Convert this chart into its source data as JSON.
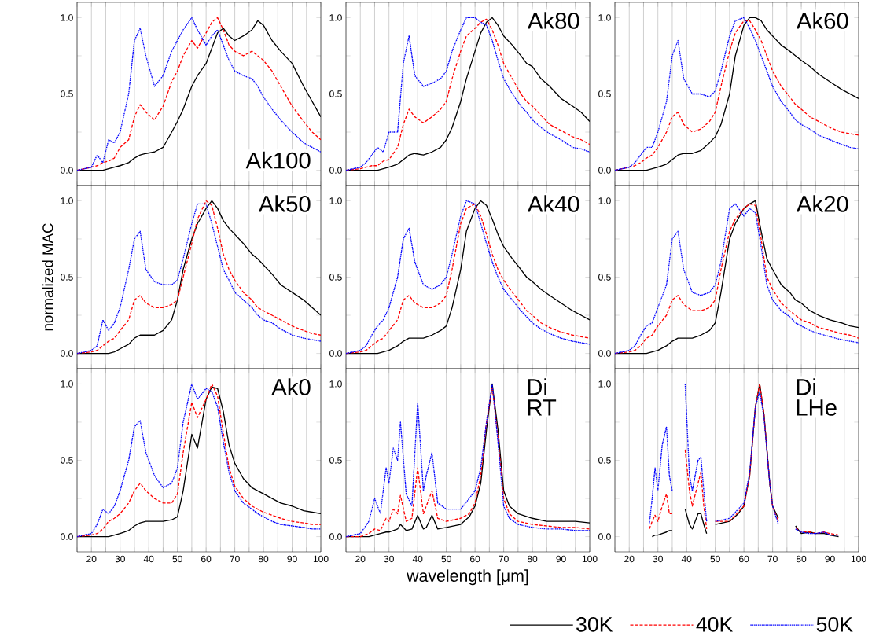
{
  "chart_data": [
    {
      "type": "line",
      "title": "Ak100",
      "x": [
        15,
        20,
        22,
        24,
        26,
        28,
        30,
        33,
        35,
        37,
        39,
        42,
        45,
        48,
        50,
        52,
        55,
        57,
        60,
        62,
        64,
        66,
        68,
        70,
        73,
        76,
        78,
        80,
        83,
        86,
        90,
        94,
        97,
        100
      ],
      "xlim": [
        15,
        100
      ],
      "ylim": [
        -0.1,
        1.1
      ],
      "xticks": [
        {
          "value": 15,
          "label": null
        },
        20,
        {
          "value": 25,
          "label": null
        },
        30,
        {
          "value": 35,
          "label": null
        },
        40,
        {
          "value": 45,
          "label": null
        },
        50,
        {
          "value": 55,
          "label": null
        },
        60,
        {
          "value": 65,
          "label": null
        },
        70,
        {
          "value": 75,
          "label": null
        },
        80,
        {
          "value": 85,
          "label": null
        },
        90,
        {
          "value": 95,
          "label": null
        },
        100
      ],
      "yticks": [
        {
          "value": 0,
          "label": "0.0"
        },
        {
          "value": 0.25,
          "label": null
        },
        {
          "value": 0.5,
          "label": "0.5"
        },
        {
          "value": 0.75,
          "label": null
        },
        {
          "value": 1,
          "label": "1.0"
        }
      ],
      "grid": "x",
      "tick_labels": "y",
      "series": [
        {
          "color": "#000000",
          "line_style": "solid",
          "values": [
            0,
            0,
            0,
            0,
            0.01,
            0.02,
            0.03,
            0.05,
            0.08,
            0.1,
            0.11,
            0.12,
            0.15,
            0.25,
            0.32,
            0.4,
            0.55,
            0.62,
            0.7,
            0.8,
            0.9,
            0.93,
            0.88,
            0.85,
            0.88,
            0.92,
            0.98,
            0.95,
            0.85,
            0.78,
            0.7,
            0.55,
            0.45,
            0.35
          ]
        },
        {
          "color": "#ff0000",
          "line_style": "dashed",
          "values": [
            0,
            0.02,
            0.03,
            0.05,
            0.06,
            0.08,
            0.15,
            0.2,
            0.35,
            0.43,
            0.38,
            0.33,
            0.42,
            0.58,
            0.65,
            0.75,
            0.85,
            0.8,
            0.9,
            0.97,
            1.0,
            0.92,
            0.82,
            0.78,
            0.75,
            0.78,
            0.75,
            0.72,
            0.65,
            0.55,
            0.42,
            0.32,
            0.25,
            0.2
          ]
        },
        {
          "color": "#0000ff",
          "line_style": "dotted",
          "values": [
            0,
            0.02,
            0.1,
            0.05,
            0.2,
            0.18,
            0.25,
            0.5,
            0.85,
            0.93,
            0.75,
            0.55,
            0.62,
            0.78,
            0.85,
            0.92,
            1.0,
            0.92,
            0.82,
            0.88,
            0.92,
            0.82,
            0.72,
            0.65,
            0.62,
            0.6,
            0.55,
            0.48,
            0.4,
            0.33,
            0.25,
            0.18,
            0.15,
            0.12
          ]
        }
      ]
    },
    {
      "type": "line",
      "title": "Ak80",
      "x": [
        15,
        20,
        22,
        24,
        26,
        28,
        30,
        33,
        35,
        37,
        39,
        42,
        45,
        48,
        50,
        52,
        55,
        57,
        60,
        62,
        64,
        66,
        68,
        70,
        73,
        76,
        78,
        80,
        83,
        86,
        90,
        94,
        97,
        100
      ],
      "xlim": [
        15,
        100
      ],
      "ylim": [
        -0.1,
        1.1
      ],
      "xticks": [
        {
          "value": 15,
          "label": null
        },
        20,
        {
          "value": 25,
          "label": null
        },
        30,
        {
          "value": 35,
          "label": null
        },
        40,
        {
          "value": 45,
          "label": null
        },
        50,
        {
          "value": 55,
          "label": null
        },
        60,
        {
          "value": 65,
          "label": null
        },
        70,
        {
          "value": 75,
          "label": null
        },
        80,
        {
          "value": 85,
          "label": null
        },
        90,
        {
          "value": 95,
          "label": null
        },
        100
      ],
      "yticks": [
        {
          "value": 0,
          "label": "0.0"
        },
        {
          "value": 0.25,
          "label": null
        },
        {
          "value": 0.5,
          "label": "0.5"
        },
        {
          "value": 0.75,
          "label": null
        },
        {
          "value": 1,
          "label": "1.0"
        }
      ],
      "grid": "x",
      "tick_labels": "y",
      "series": [
        {
          "color": "#000000",
          "line_style": "solid",
          "values": [
            0,
            0,
            0,
            0,
            0,
            0.01,
            0.02,
            0.04,
            0.07,
            0.1,
            0.11,
            0.1,
            0.12,
            0.15,
            0.2,
            0.28,
            0.45,
            0.6,
            0.78,
            0.9,
            0.97,
            1.0,
            0.95,
            0.88,
            0.82,
            0.75,
            0.7,
            0.68,
            0.6,
            0.55,
            0.47,
            0.42,
            0.38,
            0.32
          ]
        },
        {
          "color": "#ff0000",
          "line_style": "dashed",
          "values": [
            0,
            0.01,
            0.02,
            0.03,
            0.03,
            0.06,
            0.07,
            0.15,
            0.3,
            0.4,
            0.35,
            0.31,
            0.35,
            0.4,
            0.45,
            0.6,
            0.78,
            0.88,
            0.93,
            0.97,
            0.99,
            0.92,
            0.82,
            0.7,
            0.6,
            0.5,
            0.45,
            0.42,
            0.36,
            0.3,
            0.26,
            0.22,
            0.2,
            0.17
          ]
        },
        {
          "color": "#0000ff",
          "line_style": "dotted",
          "values": [
            0,
            0.02,
            0.05,
            0.1,
            0.15,
            0.12,
            0.25,
            0.25,
            0.7,
            0.88,
            0.62,
            0.55,
            0.57,
            0.6,
            0.65,
            0.78,
            0.92,
            1.0,
            1.0,
            0.97,
            0.95,
            0.85,
            0.72,
            0.6,
            0.5,
            0.42,
            0.38,
            0.33,
            0.28,
            0.24,
            0.2,
            0.15,
            0.14,
            0.12
          ]
        }
      ]
    },
    {
      "type": "line",
      "title": "Ak60",
      "x": [
        15,
        20,
        22,
        24,
        26,
        28,
        30,
        33,
        35,
        37,
        39,
        42,
        45,
        48,
        50,
        52,
        55,
        57,
        60,
        62,
        64,
        66,
        68,
        70,
        73,
        76,
        78,
        80,
        83,
        86,
        90,
        94,
        97,
        100
      ],
      "xlim": [
        15,
        100
      ],
      "ylim": [
        -0.1,
        1.1
      ],
      "xticks": [
        {
          "value": 15,
          "label": null
        },
        20,
        {
          "value": 25,
          "label": null
        },
        30,
        {
          "value": 35,
          "label": null
        },
        40,
        {
          "value": 45,
          "label": null
        },
        50,
        {
          "value": 55,
          "label": null
        },
        60,
        {
          "value": 65,
          "label": null
        },
        70,
        {
          "value": 75,
          "label": null
        },
        80,
        {
          "value": 85,
          "label": null
        },
        90,
        {
          "value": 95,
          "label": null
        },
        100
      ],
      "yticks": [
        {
          "value": 0,
          "label": "0.0"
        },
        {
          "value": 0.25,
          "label": null
        },
        {
          "value": 0.5,
          "label": "0.5"
        },
        {
          "value": 0.75,
          "label": null
        },
        {
          "value": 1,
          "label": "1.0"
        }
      ],
      "grid": "x",
      "tick_labels": "y",
      "series": [
        {
          "color": "#000000",
          "line_style": "solid",
          "values": [
            0,
            0,
            0,
            0,
            0,
            0.01,
            0.02,
            0.04,
            0.07,
            0.1,
            0.11,
            0.11,
            0.13,
            0.18,
            0.22,
            0.3,
            0.5,
            0.75,
            0.95,
            1.0,
            1.0,
            0.98,
            0.92,
            0.88,
            0.82,
            0.78,
            0.75,
            0.72,
            0.68,
            0.63,
            0.58,
            0.53,
            0.5,
            0.47
          ]
        },
        {
          "color": "#ff0000",
          "line_style": "dashed",
          "values": [
            0,
            0.02,
            0.03,
            0.05,
            0.08,
            0.1,
            0.15,
            0.25,
            0.35,
            0.38,
            0.3,
            0.25,
            0.27,
            0.32,
            0.38,
            0.55,
            0.78,
            0.9,
            0.98,
            0.98,
            0.92,
            0.85,
            0.75,
            0.65,
            0.55,
            0.48,
            0.43,
            0.4,
            0.35,
            0.32,
            0.28,
            0.25,
            0.24,
            0.23
          ]
        },
        {
          "color": "#0000ff",
          "line_style": "dotted",
          "values": [
            0,
            0.02,
            0.05,
            0.1,
            0.15,
            0.15,
            0.25,
            0.45,
            0.75,
            0.85,
            0.6,
            0.5,
            0.5,
            0.48,
            0.52,
            0.65,
            0.88,
            0.98,
            1.0,
            0.93,
            0.85,
            0.75,
            0.65,
            0.55,
            0.45,
            0.38,
            0.33,
            0.3,
            0.27,
            0.23,
            0.2,
            0.17,
            0.15,
            0.14
          ]
        }
      ]
    },
    {
      "type": "line",
      "title": "Ak50",
      "ylabel": "normalized MAC",
      "x": [
        15,
        20,
        22,
        24,
        26,
        28,
        30,
        33,
        35,
        37,
        39,
        42,
        45,
        48,
        50,
        52,
        55,
        57,
        60,
        62,
        64,
        66,
        68,
        70,
        73,
        76,
        78,
        80,
        83,
        86,
        90,
        94,
        97,
        100
      ],
      "xlim": [
        15,
        100
      ],
      "ylim": [
        -0.1,
        1.1
      ],
      "xticks": [
        {
          "value": 15,
          "label": null
        },
        20,
        {
          "value": 25,
          "label": null
        },
        30,
        {
          "value": 35,
          "label": null
        },
        40,
        {
          "value": 45,
          "label": null
        },
        50,
        {
          "value": 55,
          "label": null
        },
        60,
        {
          "value": 65,
          "label": null
        },
        70,
        {
          "value": 75,
          "label": null
        },
        80,
        {
          "value": 85,
          "label": null
        },
        90,
        {
          "value": 95,
          "label": null
        },
        100
      ],
      "yticks": [
        {
          "value": 0,
          "label": "0.0"
        },
        {
          "value": 0.25,
          "label": null
        },
        {
          "value": 0.5,
          "label": "0.5"
        },
        {
          "value": 0.75,
          "label": null
        },
        {
          "value": 1,
          "label": "1.0"
        }
      ],
      "grid": "x",
      "tick_labels": "y",
      "series": [
        {
          "color": "#000000",
          "line_style": "solid",
          "values": [
            0,
            0,
            0,
            0,
            0,
            0.01,
            0.03,
            0.06,
            0.1,
            0.12,
            0.12,
            0.12,
            0.15,
            0.22,
            0.35,
            0.55,
            0.75,
            0.85,
            0.95,
            1.0,
            0.95,
            0.87,
            0.82,
            0.78,
            0.72,
            0.65,
            0.62,
            0.58,
            0.52,
            0.45,
            0.4,
            0.35,
            0.3,
            0.25
          ]
        },
        {
          "color": "#ff0000",
          "line_style": "dashed",
          "values": [
            0,
            0.01,
            0.02,
            0.05,
            0.08,
            0.1,
            0.15,
            0.22,
            0.35,
            0.38,
            0.33,
            0.3,
            0.3,
            0.32,
            0.35,
            0.5,
            0.72,
            0.88,
            1.0,
            0.97,
            0.82,
            0.65,
            0.55,
            0.48,
            0.4,
            0.35,
            0.3,
            0.28,
            0.25,
            0.22,
            0.18,
            0.15,
            0.13,
            0.12
          ]
        },
        {
          "color": "#0000ff",
          "line_style": "dotted",
          "values": [
            0,
            0.02,
            0.05,
            0.22,
            0.15,
            0.2,
            0.3,
            0.55,
            0.75,
            0.8,
            0.55,
            0.47,
            0.45,
            0.45,
            0.48,
            0.62,
            0.85,
            0.98,
            0.98,
            0.85,
            0.7,
            0.55,
            0.48,
            0.4,
            0.35,
            0.3,
            0.25,
            0.22,
            0.2,
            0.16,
            0.12,
            0.1,
            0.09,
            0.08
          ]
        }
      ]
    },
    {
      "type": "line",
      "title": "Ak40",
      "x": [
        15,
        20,
        22,
        24,
        26,
        28,
        30,
        33,
        35,
        37,
        39,
        42,
        45,
        48,
        50,
        52,
        55,
        57,
        60,
        62,
        64,
        66,
        68,
        70,
        73,
        76,
        78,
        80,
        83,
        86,
        90,
        94,
        97,
        100
      ],
      "xlim": [
        15,
        100
      ],
      "ylim": [
        -0.1,
        1.1
      ],
      "xticks": [
        {
          "value": 15,
          "label": null
        },
        20,
        {
          "value": 25,
          "label": null
        },
        30,
        {
          "value": 35,
          "label": null
        },
        40,
        {
          "value": 45,
          "label": null
        },
        50,
        {
          "value": 55,
          "label": null
        },
        60,
        {
          "value": 65,
          "label": null
        },
        70,
        {
          "value": 75,
          "label": null
        },
        80,
        {
          "value": 85,
          "label": null
        },
        90,
        {
          "value": 95,
          "label": null
        },
        100
      ],
      "yticks": [
        {
          "value": 0,
          "label": "0.0"
        },
        {
          "value": 0.25,
          "label": null
        },
        {
          "value": 0.5,
          "label": "0.5"
        },
        {
          "value": 0.75,
          "label": null
        },
        {
          "value": 1,
          "label": "1.0"
        }
      ],
      "grid": "x",
      "tick_labels": "y",
      "series": [
        {
          "color": "#000000",
          "line_style": "solid",
          "values": [
            0,
            0,
            0,
            0,
            0,
            0.01,
            0.02,
            0.05,
            0.08,
            0.1,
            0.1,
            0.1,
            0.12,
            0.15,
            0.18,
            0.3,
            0.55,
            0.8,
            0.95,
            1.0,
            0.97,
            0.88,
            0.78,
            0.7,
            0.62,
            0.55,
            0.5,
            0.47,
            0.42,
            0.38,
            0.33,
            0.28,
            0.25,
            0.22
          ]
        },
        {
          "color": "#ff0000",
          "line_style": "dashed",
          "values": [
            0,
            0.01,
            0.02,
            0.05,
            0.08,
            0.1,
            0.15,
            0.22,
            0.35,
            0.38,
            0.33,
            0.3,
            0.3,
            0.33,
            0.38,
            0.55,
            0.85,
            0.95,
            0.98,
            0.9,
            0.78,
            0.65,
            0.55,
            0.48,
            0.4,
            0.33,
            0.28,
            0.25,
            0.2,
            0.17,
            0.14,
            0.12,
            0.11,
            0.1
          ]
        },
        {
          "color": "#0000ff",
          "line_style": "dotted",
          "values": [
            0,
            0.02,
            0.05,
            0.12,
            0.18,
            0.22,
            0.3,
            0.5,
            0.75,
            0.82,
            0.6,
            0.45,
            0.42,
            0.45,
            0.5,
            0.65,
            0.9,
            1.0,
            0.98,
            0.85,
            0.72,
            0.6,
            0.5,
            0.42,
            0.35,
            0.28,
            0.24,
            0.2,
            0.16,
            0.13,
            0.1,
            0.08,
            0.07,
            0.06
          ]
        }
      ]
    },
    {
      "type": "line",
      "title": "Ak20",
      "x": [
        15,
        20,
        22,
        24,
        26,
        28,
        30,
        33,
        35,
        37,
        39,
        42,
        45,
        48,
        50,
        52,
        55,
        57,
        60,
        62,
        64,
        66,
        68,
        70,
        73,
        76,
        78,
        80,
        83,
        86,
        90,
        94,
        97,
        100
      ],
      "xlim": [
        15,
        100
      ],
      "ylim": [
        -0.1,
        1.1
      ],
      "xticks": [
        {
          "value": 15,
          "label": null
        },
        20,
        {
          "value": 25,
          "label": null
        },
        30,
        {
          "value": 35,
          "label": null
        },
        40,
        {
          "value": 45,
          "label": null
        },
        50,
        {
          "value": 55,
          "label": null
        },
        60,
        {
          "value": 65,
          "label": null
        },
        70,
        {
          "value": 75,
          "label": null
        },
        80,
        {
          "value": 85,
          "label": null
        },
        90,
        {
          "value": 95,
          "label": null
        },
        100
      ],
      "yticks": [
        {
          "value": 0,
          "label": "0.0"
        },
        {
          "value": 0.25,
          "label": null
        },
        {
          "value": 0.5,
          "label": "0.5"
        },
        {
          "value": 0.75,
          "label": null
        },
        {
          "value": 1,
          "label": "1.0"
        }
      ],
      "grid": "x",
      "tick_labels": "y",
      "series": [
        {
          "color": "#000000",
          "line_style": "solid",
          "values": [
            0,
            0,
            0,
            0,
            0,
            0.01,
            0.02,
            0.05,
            0.08,
            0.1,
            0.1,
            0.1,
            0.12,
            0.15,
            0.2,
            0.4,
            0.75,
            0.85,
            0.95,
            0.98,
            1.0,
            0.8,
            0.62,
            0.55,
            0.45,
            0.4,
            0.35,
            0.33,
            0.28,
            0.25,
            0.22,
            0.2,
            0.18,
            0.17
          ]
        },
        {
          "color": "#ff0000",
          "line_style": "dashed",
          "values": [
            0,
            0.01,
            0.02,
            0.05,
            0.1,
            0.12,
            0.18,
            0.25,
            0.35,
            0.38,
            0.32,
            0.28,
            0.28,
            0.3,
            0.35,
            0.55,
            0.8,
            0.88,
            0.95,
            0.98,
            0.97,
            0.75,
            0.5,
            0.42,
            0.33,
            0.28,
            0.25,
            0.22,
            0.2,
            0.17,
            0.15,
            0.13,
            0.12,
            0.1
          ]
        },
        {
          "color": "#0000ff",
          "line_style": "dotted",
          "values": [
            0,
            0.02,
            0.05,
            0.12,
            0.18,
            0.2,
            0.3,
            0.45,
            0.75,
            0.8,
            0.55,
            0.4,
            0.38,
            0.4,
            0.45,
            0.6,
            0.95,
            0.98,
            0.9,
            0.95,
            0.92,
            0.7,
            0.45,
            0.35,
            0.28,
            0.24,
            0.2,
            0.18,
            0.15,
            0.13,
            0.11,
            0.09,
            0.08,
            0.07
          ]
        }
      ]
    },
    {
      "type": "line",
      "title": "Ak0",
      "x": [
        15,
        20,
        22,
        24,
        26,
        28,
        30,
        33,
        35,
        37,
        39,
        42,
        45,
        48,
        50,
        52,
        55,
        57,
        60,
        62,
        64,
        66,
        68,
        70,
        73,
        76,
        78,
        80,
        83,
        86,
        90,
        94,
        97,
        100
      ],
      "xlim": [
        15,
        100
      ],
      "ylim": [
        -0.1,
        1.1
      ],
      "xticks": [
        {
          "value": 15,
          "label": null
        },
        20,
        {
          "value": 25,
          "label": null
        },
        30,
        {
          "value": 35,
          "label": null
        },
        40,
        {
          "value": 45,
          "label": null
        },
        50,
        {
          "value": 55,
          "label": null
        },
        60,
        {
          "value": 65,
          "label": null
        },
        70,
        {
          "value": 75,
          "label": null
        },
        80,
        {
          "value": 85,
          "label": null
        },
        90,
        {
          "value": 95,
          "label": null
        },
        100
      ],
      "yticks": [
        {
          "value": 0,
          "label": "0.0"
        },
        {
          "value": 0.25,
          "label": null
        },
        {
          "value": 0.5,
          "label": "0.5"
        },
        {
          "value": 0.75,
          "label": null
        },
        {
          "value": 1,
          "label": "1.0"
        }
      ],
      "grid": "x",
      "series": [
        {
          "color": "#000000",
          "line_style": "solid",
          "values": [
            0,
            0,
            0,
            0,
            0,
            0.01,
            0.02,
            0.04,
            0.07,
            0.09,
            0.1,
            0.1,
            0.1,
            0.11,
            0.13,
            0.3,
            0.67,
            0.58,
            0.9,
            0.98,
            0.97,
            0.82,
            0.6,
            0.48,
            0.38,
            0.32,
            0.3,
            0.28,
            0.25,
            0.22,
            0.2,
            0.17,
            0.16,
            0.15
          ]
        },
        {
          "color": "#ff0000",
          "line_style": "dashed",
          "values": [
            0,
            0.01,
            0.02,
            0.05,
            0.1,
            0.12,
            0.15,
            0.22,
            0.3,
            0.35,
            0.3,
            0.25,
            0.22,
            0.22,
            0.28,
            0.55,
            0.88,
            0.78,
            0.9,
            1.0,
            0.92,
            0.68,
            0.45,
            0.33,
            0.25,
            0.2,
            0.18,
            0.16,
            0.14,
            0.12,
            0.1,
            0.09,
            0.08,
            0.08
          ]
        },
        {
          "color": "#0000ff",
          "line_style": "dotted",
          "values": [
            0,
            0.02,
            0.08,
            0.18,
            0.15,
            0.2,
            0.3,
            0.5,
            0.72,
            0.76,
            0.55,
            0.4,
            0.32,
            0.35,
            0.45,
            0.75,
            1.0,
            0.9,
            0.97,
            0.95,
            0.85,
            0.62,
            0.42,
            0.3,
            0.22,
            0.18,
            0.15,
            0.13,
            0.1,
            0.08,
            0.07,
            0.06,
            0.05,
            0.05
          ]
        }
      ]
    },
    {
      "type": "line",
      "title": "Di",
      "subtitle": "RT",
      "xlabel": "wavelength [μm]",
      "x": [
        15,
        20,
        23,
        25,
        27,
        29,
        30,
        31.5,
        33,
        34,
        36,
        38,
        40,
        42,
        43,
        45,
        47,
        50,
        55,
        58,
        60,
        62,
        64,
        66,
        68,
        70,
        72,
        75,
        80,
        85,
        90,
        95,
        100
      ],
      "xlim": [
        15,
        100
      ],
      "ylim": [
        -0.1,
        1.1
      ],
      "xticks": [
        {
          "value": 15,
          "label": null
        },
        20,
        {
          "value": 25,
          "label": null
        },
        30,
        {
          "value": 35,
          "label": null
        },
        40,
        {
          "value": 45,
          "label": null
        },
        50,
        {
          "value": 55,
          "label": null
        },
        60,
        {
          "value": 65,
          "label": null
        },
        70,
        {
          "value": 75,
          "label": null
        },
        80,
        {
          "value": 85,
          "label": null
        },
        90,
        {
          "value": 95,
          "label": null
        },
        100
      ],
      "yticks": [
        {
          "value": 0,
          "label": "0.0"
        },
        {
          "value": 0.25,
          "label": null
        },
        {
          "value": 0.5,
          "label": "0.5"
        },
        {
          "value": 0.75,
          "label": null
        },
        {
          "value": 1,
          "label": "1.0"
        }
      ],
      "grid": "x",
      "series": [
        {
          "color": "#000000",
          "line_style": "solid",
          "values": [
            0,
            0,
            0,
            0.01,
            0.02,
            0.03,
            0.03,
            0.04,
            0.05,
            0.08,
            0.04,
            0.05,
            0.14,
            0.05,
            0.06,
            0.14,
            0.05,
            0.06,
            0.08,
            0.13,
            0.2,
            0.35,
            0.7,
            1.0,
            0.7,
            0.3,
            0.2,
            0.15,
            0.12,
            0.1,
            0.1,
            0.1,
            0.09
          ]
        },
        {
          "color": "#ff0000",
          "line_style": "dashed",
          "values": [
            0,
            0,
            0.02,
            0.05,
            0.04,
            0.12,
            0.1,
            0.18,
            0.15,
            0.27,
            0.1,
            0.12,
            0.45,
            0.15,
            0.2,
            0.3,
            0.12,
            0.1,
            0.12,
            0.15,
            0.22,
            0.4,
            0.75,
            0.98,
            0.65,
            0.25,
            0.15,
            0.1,
            0.08,
            0.07,
            0.06,
            0.06,
            0.05
          ]
        },
        {
          "color": "#0000ff",
          "line_style": "dotted",
          "values": [
            0,
            0.02,
            0.1,
            0.25,
            0.15,
            0.45,
            0.35,
            0.58,
            0.5,
            0.75,
            0.28,
            0.2,
            0.88,
            0.3,
            0.4,
            0.55,
            0.22,
            0.18,
            0.18,
            0.25,
            0.3,
            0.45,
            0.75,
            1.0,
            0.62,
            0.2,
            0.12,
            0.08,
            0.06,
            0.05,
            0.05,
            0.04,
            0.04
          ]
        }
      ]
    },
    {
      "type": "line",
      "title": "Di",
      "subtitle": "LHe",
      "legend": "bottom",
      "x": [
        27,
        28,
        29,
        30,
        31.5,
        33,
        34,
        35,
        36,
        38,
        39.5,
        41,
        42,
        44,
        45,
        46,
        47,
        48,
        50,
        55,
        58,
        60,
        62,
        64,
        65.5,
        67,
        69,
        70,
        72,
        73,
        77,
        78,
        80,
        83,
        85,
        88,
        90,
        93
      ],
      "xlim": [
        15,
        100
      ],
      "ylim": [
        -0.1,
        1.1
      ],
      "xticks": [
        {
          "value": 15,
          "label": null
        },
        20,
        {
          "value": 25,
          "label": null
        },
        30,
        {
          "value": 35,
          "label": null
        },
        40,
        {
          "value": 45,
          "label": null
        },
        50,
        {
          "value": 55,
          "label": null
        },
        60,
        {
          "value": 65,
          "label": null
        },
        70,
        {
          "value": 75,
          "label": null
        },
        80,
        {
          "value": 85,
          "label": null
        },
        90,
        {
          "value": 95,
          "label": null
        },
        100
      ],
      "yticks": [
        {
          "value": 0,
          "label": "0.0"
        },
        {
          "value": 0.25,
          "label": null
        },
        {
          "value": 0.5,
          "label": "0.5"
        },
        {
          "value": 0.75,
          "label": null
        },
        {
          "value": 1,
          "label": "1.0"
        }
      ],
      "grid": "x",
      "series": [
        {
          "name": "30K",
          "color": "#000000",
          "line_style": "solid",
          "values": [
            null,
            0,
            0.01,
            0.01,
            0.02,
            0.03,
            0.04,
            0.04,
            null,
            null,
            0.18,
            0.08,
            0.05,
            0.15,
            0.15,
            0.08,
            0.02,
            null,
            0.08,
            0.1,
            0.15,
            0.2,
            0.4,
            0.85,
            1.0,
            0.8,
            0.35,
            0.2,
            0.12,
            null,
            null,
            0.07,
            0.02,
            0.03,
            0.02,
            0.02,
            0.01,
            0
          ]
        },
        {
          "name": "40K",
          "color": "#ff0000",
          "line_style": "dashed",
          "values": [
            0.05,
            0.1,
            0.14,
            0.1,
            0.2,
            0.28,
            0.15,
            0.15,
            null,
            null,
            0.57,
            0.3,
            0.2,
            0.35,
            0.42,
            0.2,
            0.05,
            null,
            0.1,
            0.1,
            0.16,
            0.2,
            0.4,
            0.85,
            1.0,
            0.8,
            0.35,
            0.2,
            0.1,
            null,
            null,
            0.06,
            0.03,
            0.03,
            0.02,
            0.03,
            0.02,
            0.01
          ]
        },
        {
          "name": "50K",
          "color": "#0000ff",
          "line_style": "dotted",
          "values": [
            0.08,
            0.25,
            0.45,
            0.3,
            0.6,
            0.72,
            0.4,
            0.3,
            null,
            null,
            1.0,
            0.4,
            0.3,
            0.5,
            0.52,
            0.3,
            0.1,
            null,
            0.1,
            0.12,
            0.18,
            0.22,
            0.42,
            0.85,
            0.95,
            0.78,
            0.35,
            0.2,
            0.08,
            null,
            null,
            0.05,
            0.03,
            0.02,
            0.02,
            0.03,
            0.01,
            0.01
          ]
        }
      ]
    }
  ]
}
